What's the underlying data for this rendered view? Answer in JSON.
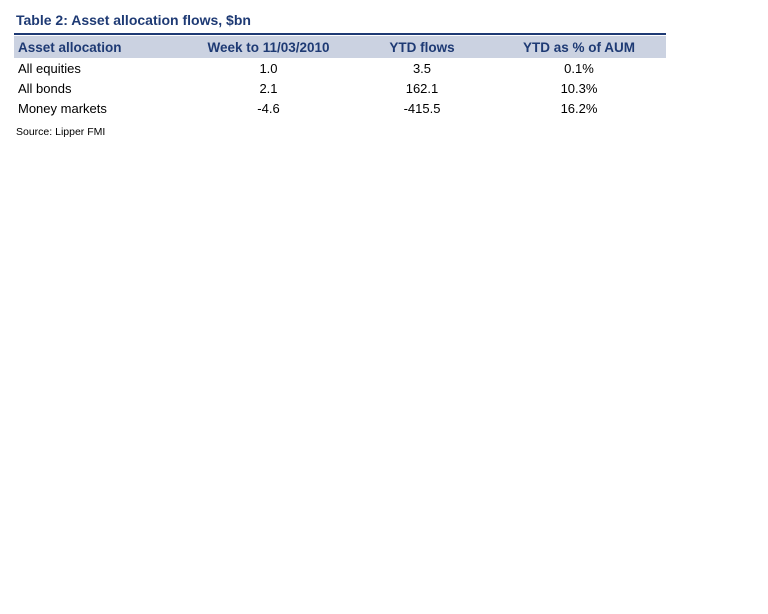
{
  "colors": {
    "accent_navy": "#1E3A74",
    "header_band": "#CBD2E1",
    "body_text": "#000000",
    "page_background": "#ffffff"
  },
  "table": {
    "title": "Table 2: Asset allocation flows, $bn",
    "columns": [
      {
        "label": "Asset allocation"
      },
      {
        "label": "Week to 11/03/2010"
      },
      {
        "label": "YTD flows"
      },
      {
        "label": "YTD as % of AUM"
      }
    ],
    "rows": [
      {
        "cells": [
          "All equities",
          "1.0",
          "3.5",
          "0.1%"
        ]
      },
      {
        "cells": [
          "All bonds",
          "2.1",
          "162.1",
          "10.3%"
        ]
      },
      {
        "cells": [
          "Money markets",
          "-4.6",
          "-415.5",
          "16.2%"
        ]
      }
    ],
    "source": "Source: Lipper FMI"
  }
}
